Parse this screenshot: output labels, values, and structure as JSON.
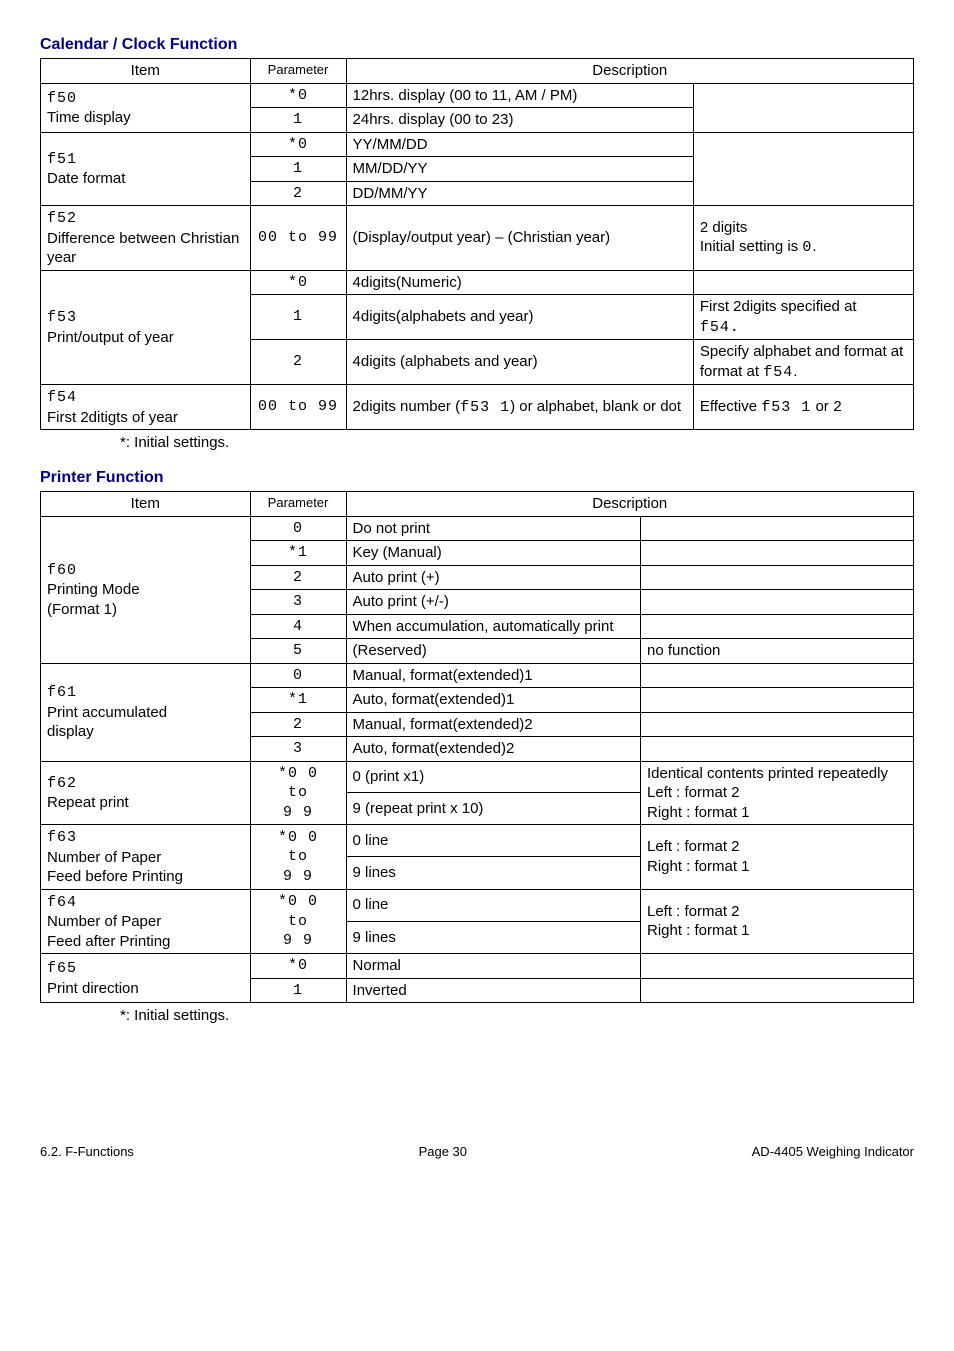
{
  "sections": {
    "calendar": {
      "title": "Calendar / Clock Function",
      "header": {
        "item": "Item",
        "parameter": "Parameter",
        "description": "Description"
      }
    },
    "printer": {
      "title": "Printer Function",
      "header": {
        "item": "Item",
        "parameter": "Parameter",
        "description": "Description"
      }
    }
  },
  "cal": {
    "f50": {
      "item_code": "f50",
      "item_name": "Time display",
      "r1p": "*0",
      "r1d": "12hrs. display (00 to 11, AM / PM)",
      "r2p": "1",
      "r2d": "24hrs. display (00 to 23)"
    },
    "f51": {
      "item_code": "f51",
      "item_name": "Date format",
      "r1p": "*0",
      "r1d": "YY/MM/DD",
      "r2p": "1",
      "r2d": "MM/DD/YY",
      "r3p": "2",
      "r3d": "DD/MM/YY"
    },
    "f52": {
      "item_code": "f52",
      "item_name": "Difference between Christian year",
      "p": "00 to 99",
      "d1": "(Display/output year) – (Christian year)",
      "d2a": "2 digits",
      "d2b": "Initial setting is ",
      "d2c": "0",
      "d2d": "."
    },
    "f53": {
      "item_code": "f53",
      "item_name": "Print/output of year",
      "r1p": "*0",
      "r1d": "4digits(Numeric)",
      "r2p": "1",
      "r2d": "4digits(alphabets and year)",
      "r2n1": "First 2digits specified at ",
      "r2n2": "f54.",
      "r3p": "2",
      "r3d": "4digits (alphabets and year)",
      "r3n1": "Specify alphabet and format at ",
      "r3n2": "f54",
      "r3n3": "."
    },
    "f54": {
      "item_code": "f54",
      "item_name": "First 2ditigts of year",
      "p": "00 to 99",
      "d1a": "2digits number (",
      "d1b": "f53  1",
      "d1c": ") or alphabet, blank or dot",
      "d2a": "Effective ",
      "d2b": "f53  1",
      "d2c": " or ",
      "d2d": "2"
    }
  },
  "prn": {
    "f60": {
      "item_code": "f60",
      "item_name1": "Printing Mode",
      "item_name2": "(Format 1)",
      "r0p": "0",
      "r0d": "Do not print",
      "r1p": "*1",
      "r1d": "Key (Manual)",
      "r2p": "2",
      "r2d": "Auto print (+)",
      "r3p": "3",
      "r3d": "Auto print (+/-)",
      "r4p": "4",
      "r4d": "When accumulation, automatically print",
      "r5p": "5",
      "r5d": "(Reserved)",
      "r5n": "no function"
    },
    "f61": {
      "item_code": "f61",
      "item_name1": "Print accumulated",
      "item_name2": "display",
      "r0p": "0",
      "r0d": "Manual, format(extended)1",
      "r1p": "*1",
      "r1d": "Auto, format(extended)1",
      "r2p": "2",
      "r2d": "Manual, format(extended)2",
      "r3p": "3",
      "r3d": "Auto, format(extended)2"
    },
    "f62": {
      "item_code": "f62",
      "item_name": "Repeat print",
      "p": "*0 0\nto\n9 9",
      "p1": "*0 0",
      "p2": "to",
      "p3": "9 9",
      "d1": "0 (print x1)",
      "d2": "9 (repeat print x 10)",
      "n1": "Identical contents printed repeatedly",
      "n2": "Left   : format 2",
      "n3": "Right : format 1"
    },
    "f63": {
      "item_code": "f63",
      "item_name1": "Number of Paper",
      "item_name2": "Feed before Printing",
      "p1": "*0 0",
      "p2": "to",
      "p3": "9 9",
      "d1": "0 line",
      "d2": "9 lines",
      "n1": "Left   : format 2",
      "n2": "Right : format 1"
    },
    "f64": {
      "item_code": "f64",
      "item_name1": "Number of Paper",
      "item_name2": "Feed after Printing",
      "p1": "*0 0",
      "p2": "to",
      "p3": "9 9",
      "d1": "0 line",
      "d2": "9 lines",
      "n1": "Left   : format 2",
      "n2": "Right : format 1"
    },
    "f65": {
      "item_code": "f65",
      "item_name": "Print direction",
      "r1p": "*0",
      "r1d": "Normal",
      "r2p": "1",
      "r2d": "Inverted"
    }
  },
  "note": "*:   Initial settings.",
  "footer": {
    "left": "6.2. F-Functions",
    "center": "Page 30",
    "right": "AD-4405 Weighing Indicator"
  }
}
